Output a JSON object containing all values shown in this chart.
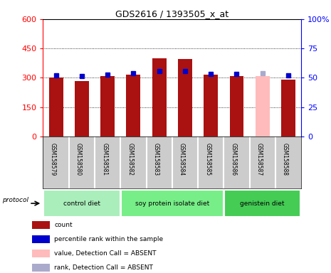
{
  "title": "GDS2616 / 1393505_x_at",
  "samples": [
    "GSM158579",
    "GSM158580",
    "GSM158581",
    "GSM158582",
    "GSM158583",
    "GSM158584",
    "GSM158585",
    "GSM158586",
    "GSM158587",
    "GSM158588"
  ],
  "count_values": [
    300,
    285,
    308,
    315,
    400,
    395,
    315,
    308,
    310,
    292
  ],
  "percentile_values": [
    52,
    51.5,
    52.5,
    54,
    56,
    55.5,
    53.5,
    53,
    54,
    52
  ],
  "absent_flag": [
    false,
    false,
    false,
    false,
    false,
    false,
    false,
    false,
    true,
    false
  ],
  "bar_color_present": "#aa1111",
  "bar_color_absent": "#ffbbbb",
  "dot_color_present": "#0000cc",
  "dot_color_absent": "#aaaacc",
  "ylim_left": [
    0,
    600
  ],
  "ylim_right": [
    0,
    100
  ],
  "yticks_left": [
    0,
    150,
    300,
    450,
    600
  ],
  "yticks_right": [
    0,
    25,
    50,
    75,
    100
  ],
  "ytick_labels_right": [
    "0",
    "25",
    "50",
    "75",
    "100%"
  ],
  "groups": [
    {
      "label": "control diet",
      "indices": [
        0,
        1,
        2
      ],
      "color": "#aaeebb"
    },
    {
      "label": "soy protein isolate diet",
      "indices": [
        3,
        4,
        5,
        6
      ],
      "color": "#77ee88"
    },
    {
      "label": "genistein diet",
      "indices": [
        7,
        8,
        9
      ],
      "color": "#44cc55"
    }
  ],
  "protocol_label": "protocol",
  "legend_items": [
    {
      "label": "count",
      "color": "#aa1111"
    },
    {
      "label": "percentile rank within the sample",
      "color": "#0000cc"
    },
    {
      "label": "value, Detection Call = ABSENT",
      "color": "#ffbbbb"
    },
    {
      "label": "rank, Detection Call = ABSENT",
      "color": "#aaaacc"
    }
  ],
  "bar_width": 0.55,
  "dot_size": 5,
  "bg_gray": "#cccccc"
}
